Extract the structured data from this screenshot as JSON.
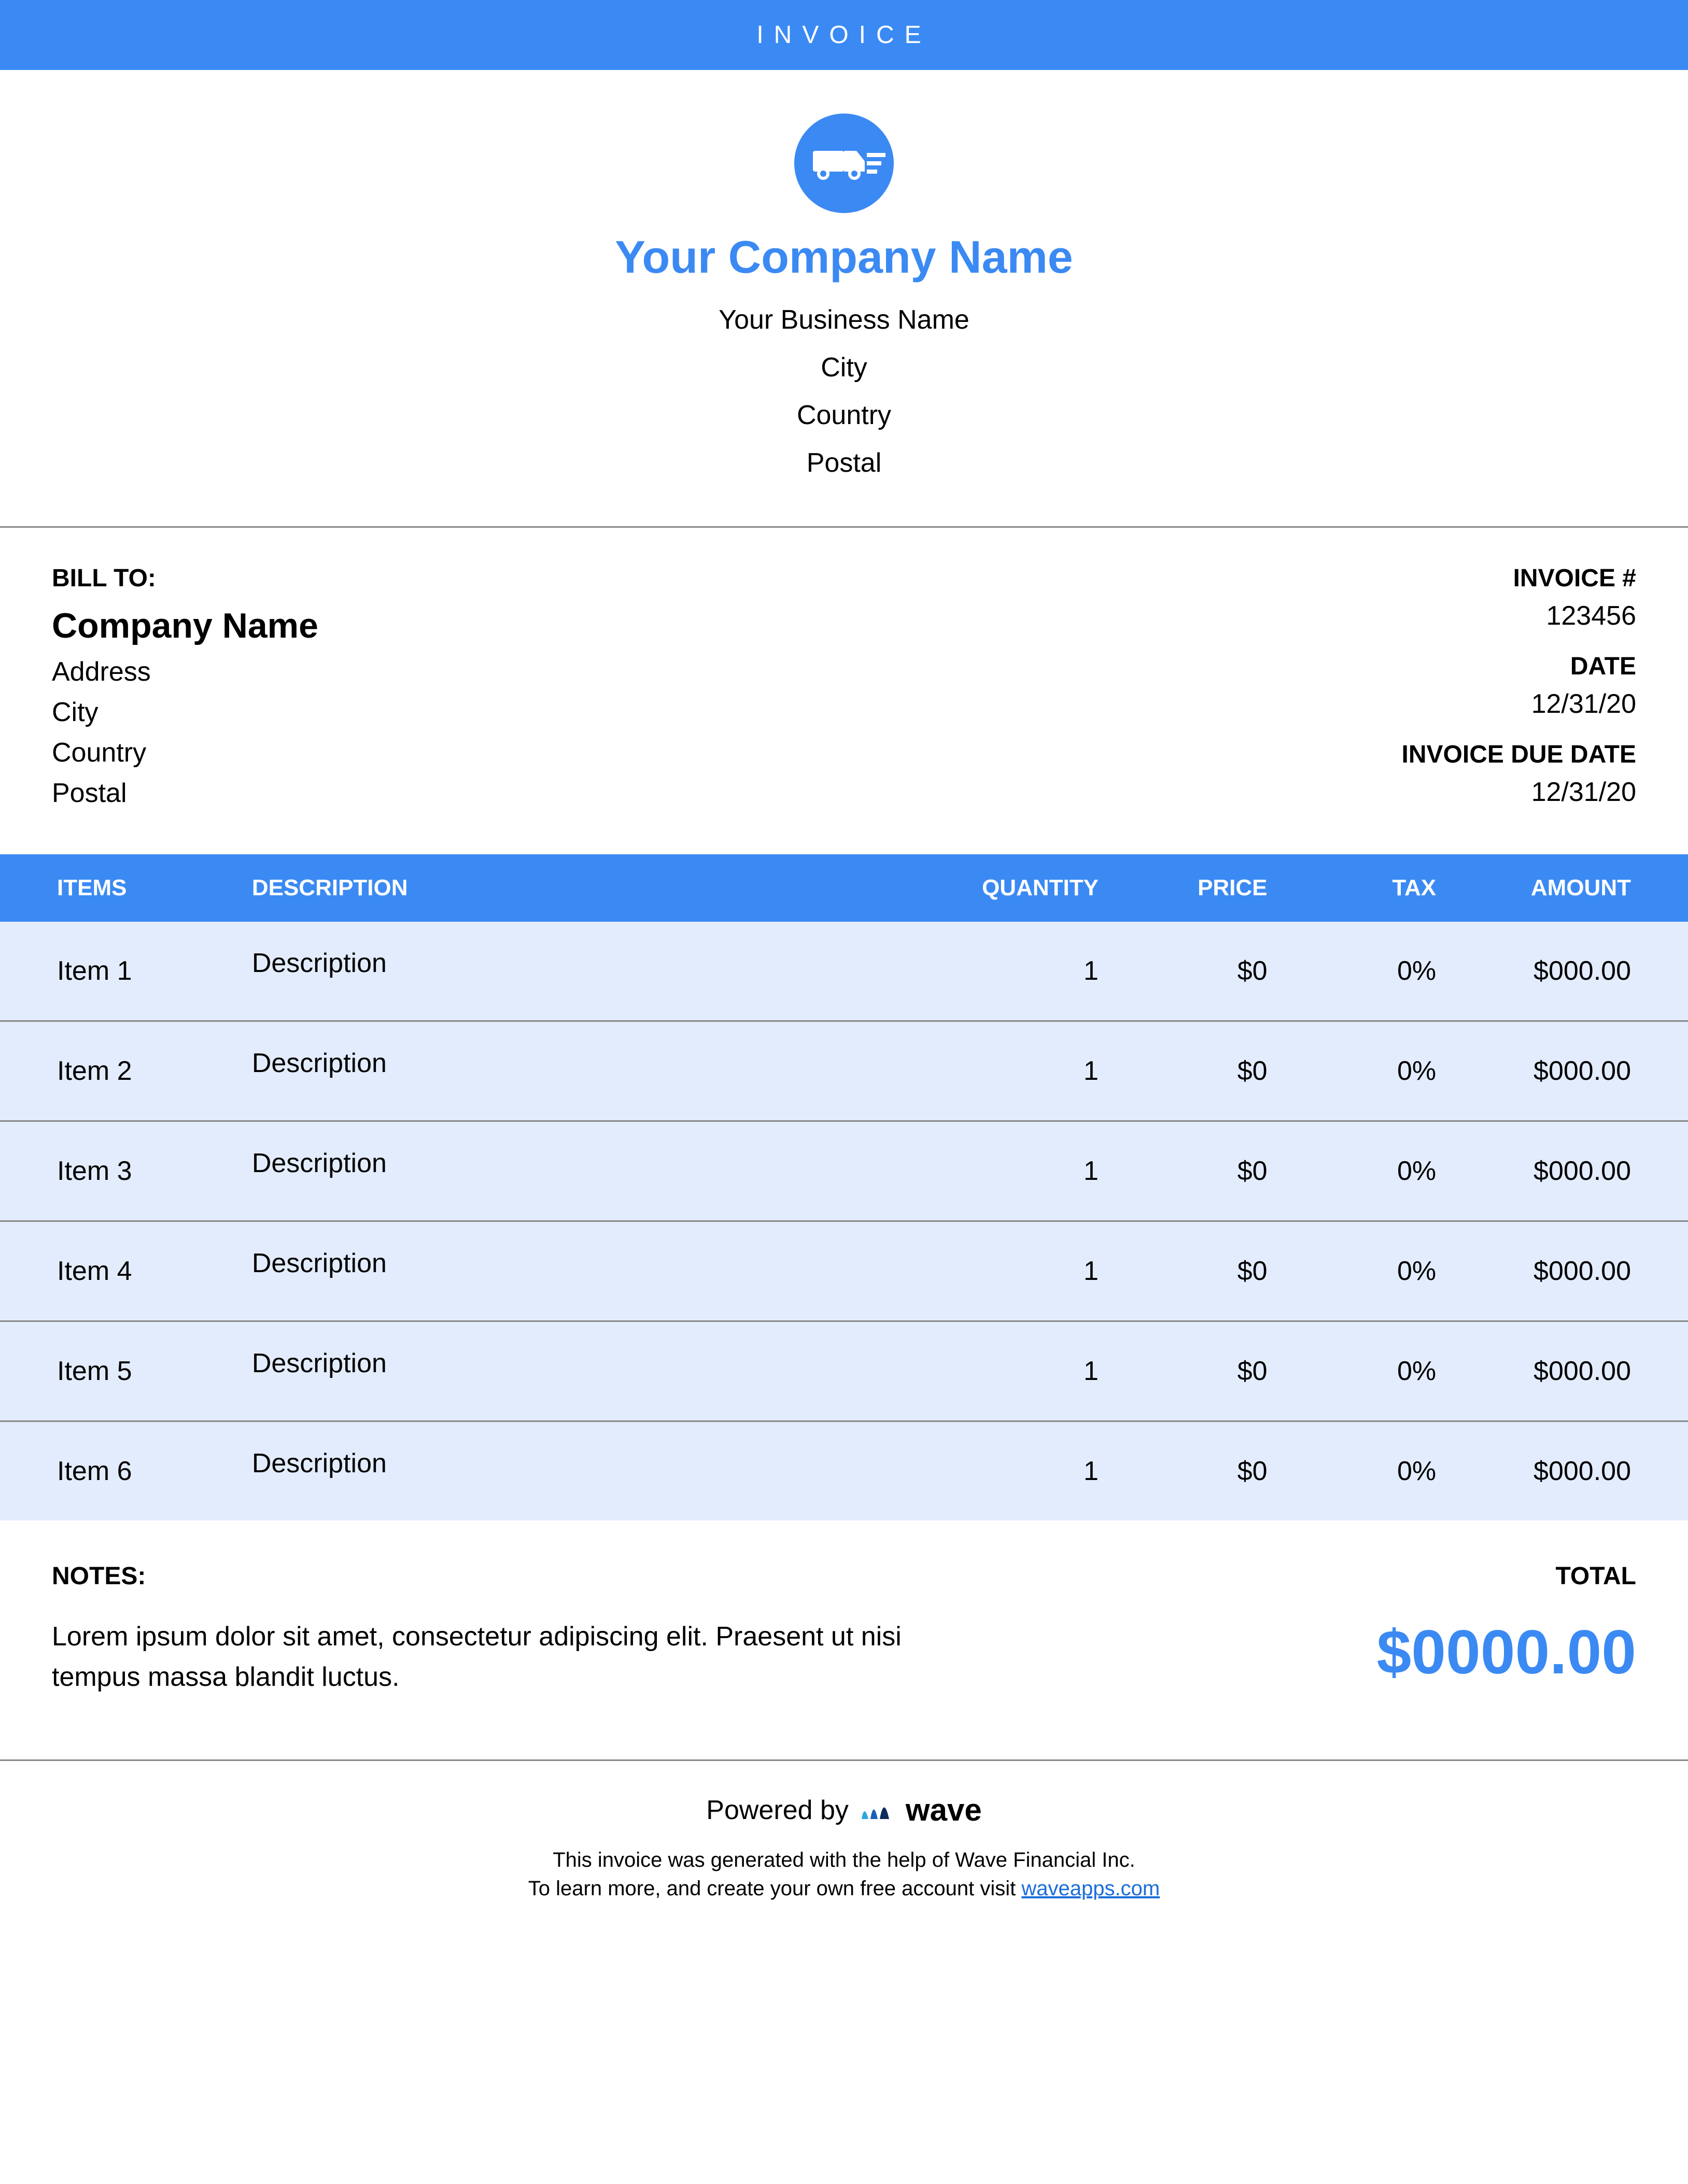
{
  "colors": {
    "primary": "#3b8af3",
    "row_bg": "#e3ecfc",
    "text": "#000000",
    "white": "#ffffff",
    "rule": "#888888",
    "link": "#1a6dd9"
  },
  "banner": {
    "title": "INVOICE"
  },
  "company": {
    "name": "Your Company Name",
    "business_name": "Your Business Name",
    "city": "City",
    "country": "Country",
    "postal": "Postal"
  },
  "bill_to": {
    "label": "BILL TO:",
    "company": "Company Name",
    "address": "Address",
    "city": "City",
    "country": "Country",
    "postal": "Postal"
  },
  "meta": {
    "invoice_num_label": "INVOICE #",
    "invoice_num": "123456",
    "date_label": "DATE",
    "date": "12/31/20",
    "due_label": "INVOICE DUE DATE",
    "due": "12/31/20"
  },
  "table": {
    "headers": {
      "items": "ITEMS",
      "description": "DESCRIPTION",
      "quantity": "QUANTITY",
      "price": "PRICE",
      "tax": "TAX",
      "amount": "AMOUNT"
    },
    "rows": [
      {
        "item": "Item 1",
        "description": "Description",
        "quantity": "1",
        "price": "$0",
        "tax": "0%",
        "amount": "$000.00"
      },
      {
        "item": "Item 2",
        "description": "Description",
        "quantity": "1",
        "price": "$0",
        "tax": "0%",
        "amount": "$000.00"
      },
      {
        "item": "Item 3",
        "description": "Description",
        "quantity": "1",
        "price": "$0",
        "tax": "0%",
        "amount": "$000.00"
      },
      {
        "item": "Item 4",
        "description": "Description",
        "quantity": "1",
        "price": "$0",
        "tax": "0%",
        "amount": "$000.00"
      },
      {
        "item": "Item 5",
        "description": "Description",
        "quantity": "1",
        "price": "$0",
        "tax": "0%",
        "amount": "$000.00"
      },
      {
        "item": "Item 6",
        "description": "Description",
        "quantity": "1",
        "price": "$0",
        "tax": "0%",
        "amount": "$000.00"
      }
    ]
  },
  "notes": {
    "label": "NOTES:",
    "text": "Lorem ipsum dolor sit amet, consectetur adipiscing elit. Praesent ut nisi tempus massa blandit luctus."
  },
  "total": {
    "label": "TOTAL",
    "amount": "$0000.00"
  },
  "footer": {
    "powered_by": "Powered by",
    "brand": "wave",
    "line1": "This invoice was generated with the help of Wave Financial Inc.",
    "line2_prefix": "To learn more, and create your own free account visit ",
    "link_text": "waveapps.com"
  }
}
